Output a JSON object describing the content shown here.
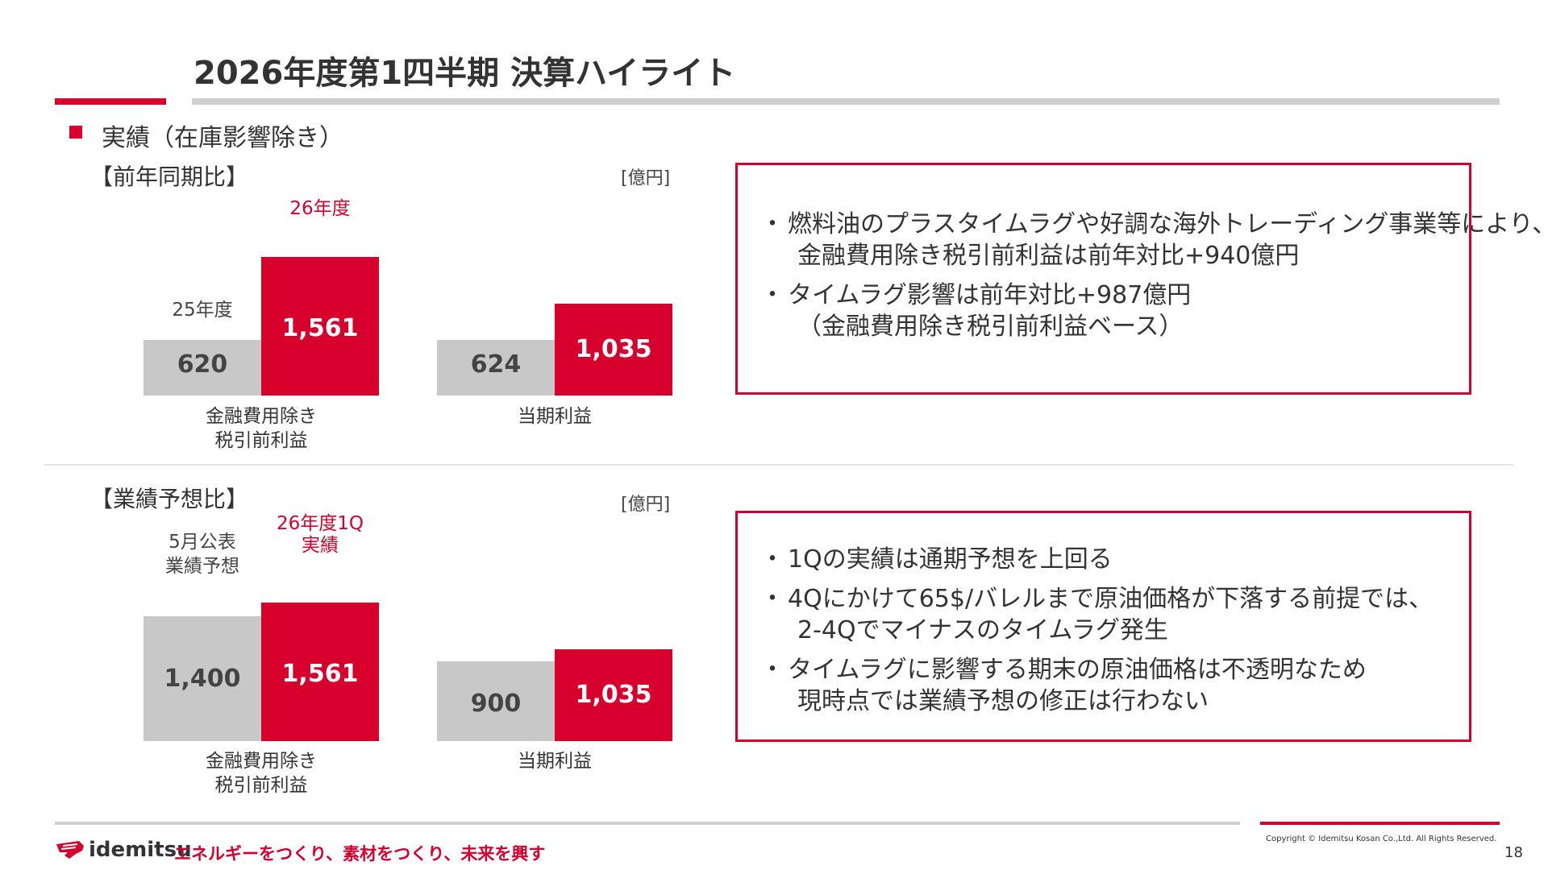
{
  "header": {
    "title": "2026年度第1四半期 決算ハイライト"
  },
  "section": {
    "label": "実績（在庫影響除き）"
  },
  "panel_yoy": {
    "subtitle": "【前年同期比】",
    "unit": "[億円]",
    "series_prev_label": "25年度",
    "series_curr_label": "26年度",
    "group1_label_line1": "金融費用除き",
    "group1_label_line2": "税引前利益",
    "group2_label": "当期利益",
    "values_display": {
      "g1_prev": "620",
      "g1_curr": "1,561",
      "g2_prev": "624",
      "g2_curr": "1,035"
    },
    "bullets": [
      {
        "line1": "燃料油のプラスタイムラグや好調な海外トレーディング事業等により、",
        "line2": "金融費用除き税引前利益は前年対比+940億円"
      },
      {
        "line1": "タイムラグ影響は前年対比+987億円",
        "line2": "（金融費用除き税引前利益ベース）"
      }
    ]
  },
  "panel_fc": {
    "subtitle": "【業績予想比】",
    "unit": "[億円]",
    "series_prev_label_line1": "5月公表",
    "series_prev_label_line2": "業績予想",
    "series_curr_label_line1": "26年度1Q",
    "series_curr_label_line2": "実績",
    "group1_label_line1": "金融費用除き",
    "group1_label_line2": "税引前利益",
    "group2_label": "当期利益",
    "values_display": {
      "g1_prev": "1,400",
      "g1_curr": "1,561",
      "g2_prev": "900",
      "g2_curr": "1,035"
    },
    "bullets": [
      {
        "line1": "1Qの実績は通期予想を上回る",
        "line2": ""
      },
      {
        "line1": "4Qにかけて65$/バレルまで原油価格が下落する前提では、",
        "line2": "2-4Qでマイナスのタイムラグ発生"
      },
      {
        "line1": "タイムラグに影響する期末の原油価格は不透明なため",
        "line2": "現時点では業績予想の修正は行わない"
      }
    ]
  },
  "chart_data": [
    {
      "type": "bar",
      "title": "【前年同期比】",
      "unit": "[億円]",
      "categories": [
        "金融費用除き税引前利益",
        "当期利益"
      ],
      "series": [
        {
          "name": "25年度",
          "values": [
            620,
            624
          ]
        },
        {
          "name": "26年度",
          "values": [
            1561,
            1035
          ]
        }
      ]
    },
    {
      "type": "bar",
      "title": "【業績予想比】",
      "unit": "[億円]",
      "categories": [
        "金融費用除き税引前利益",
        "当期利益"
      ],
      "series": [
        {
          "name": "5月公表業績予想",
          "values": [
            1400,
            900
          ]
        },
        {
          "name": "26年度1Q実績",
          "values": [
            1561,
            1035
          ]
        }
      ]
    }
  ],
  "colors": {
    "accent_red": "#d7002d",
    "bar_gray": "#c8c8c8",
    "divider_gray": "#cfcfcf"
  },
  "footer": {
    "logo_text": "idemitsu",
    "slogan": "エネルギーをつくり、素材をつくり、未来を興す",
    "copyright": "Copyright © Idemitsu Kosan Co.,Ltd.  All Rights Reserved.",
    "page_number": "18"
  }
}
